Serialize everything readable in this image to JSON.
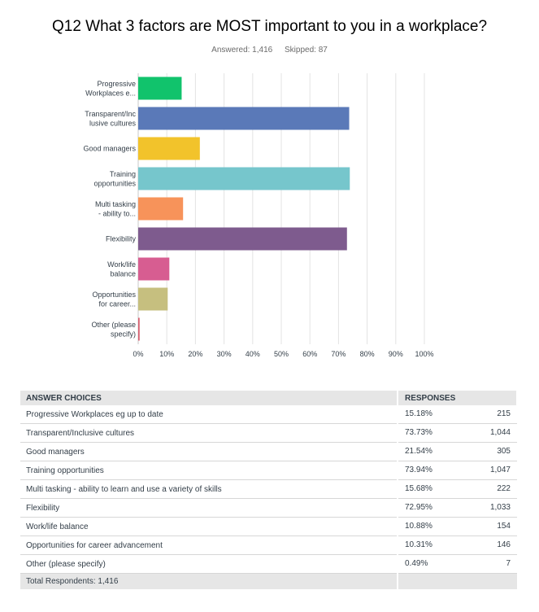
{
  "survey": {
    "question_title": "Q12 What 3 factors are MOST important to you in a workplace?",
    "answered": "Answered: 1,416",
    "skipped": "Skipped: 87"
  },
  "chart_data": {
    "type": "bar",
    "orientation": "horizontal",
    "title": "Q12 What 3 factors are MOST important to you in a workplace?",
    "categories": [
      [
        "Progressive",
        "Workplaces e..."
      ],
      [
        "Transparent/Inc",
        "lusive cultures"
      ],
      [
        "Good managers"
      ],
      [
        "Training",
        "opportunities"
      ],
      [
        "Multi tasking",
        "- ability to..."
      ],
      [
        "Flexibility"
      ],
      [
        "Work/life",
        "balance"
      ],
      [
        "Opportunities",
        "for career..."
      ],
      [
        "Other (please",
        "specify)"
      ]
    ],
    "values": [
      15.18,
      73.73,
      21.54,
      73.94,
      15.68,
      72.95,
      10.88,
      10.31,
      0.49
    ],
    "colors": [
      "#11c36c",
      "#5a79b8",
      "#f2c32b",
      "#76c6cc",
      "#f7935a",
      "#7e5b8e",
      "#d75d91",
      "#c6bf7f",
      "#d75d6e"
    ],
    "xlim": [
      0,
      100
    ],
    "xticks": [
      "0%",
      "10%",
      "20%",
      "30%",
      "40%",
      "50%",
      "60%",
      "70%",
      "80%",
      "90%",
      "100%"
    ],
    "grid": true
  },
  "table": {
    "headers": {
      "choices": "ANSWER CHOICES",
      "responses": "RESPONSES"
    },
    "rows": [
      {
        "choice": "Progressive Workplaces eg up to date",
        "percent": "15.18%",
        "count": "215"
      },
      {
        "choice": "Transparent/Inclusive cultures",
        "percent": "73.73%",
        "count": "1,044"
      },
      {
        "choice": "Good managers",
        "percent": "21.54%",
        "count": "305"
      },
      {
        "choice": "Training opportunities",
        "percent": "73.94%",
        "count": "1,047"
      },
      {
        "choice": "Multi tasking - ability to learn and use a variety of skills",
        "percent": "15.68%",
        "count": "222"
      },
      {
        "choice": "Flexibility",
        "percent": "72.95%",
        "count": "1,033"
      },
      {
        "choice": "Work/life balance",
        "percent": "10.88%",
        "count": "154"
      },
      {
        "choice": "Opportunities for career advancement",
        "percent": "10.31%",
        "count": "146"
      },
      {
        "choice": "Other (please specify)",
        "percent": "0.49%",
        "count": "7"
      }
    ],
    "total": "Total Respondents: 1,416"
  }
}
